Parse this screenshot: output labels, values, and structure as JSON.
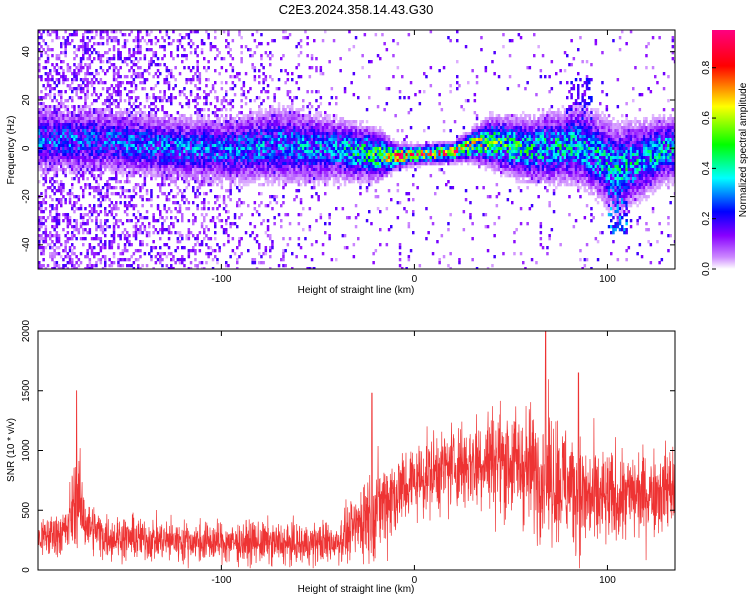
{
  "title": "C2E3.2024.358.14.43.G30",
  "chart_data": [
    {
      "type": "heatmap",
      "xlabel": "Height of straight line (km)",
      "ylabel": "Frequency (Hz)",
      "xlim": [
        -195,
        135
      ],
      "ylim": [
        -50,
        49
      ],
      "x_ticks": [
        -100,
        0,
        100
      ],
      "y_ticks": [
        -40,
        -20,
        0,
        20,
        40
      ],
      "colorbar": {
        "label": "Normalized spectral amplitude",
        "range": [
          0.0,
          0.95
        ],
        "ticks": [
          0.0,
          0.2,
          0.4,
          0.6,
          0.8
        ],
        "colors": [
          "#ffffff",
          "#8800ff",
          "#0000ff",
          "#00ffff",
          "#00ff00",
          "#ffff00",
          "#ff0000",
          "#ff0080"
        ]
      },
      "ridge": [
        {
          "x": -160,
          "f": 4,
          "width": 10,
          "amp": 0.3
        },
        {
          "x": -130,
          "f": 1,
          "width": 10,
          "amp": 0.32
        },
        {
          "x": -100,
          "f": 0,
          "width": 10,
          "amp": 0.32
        },
        {
          "x": -70,
          "f": 2,
          "width": 12,
          "amp": 0.33
        },
        {
          "x": -40,
          "f": 0,
          "width": 10,
          "amp": 0.35
        },
        {
          "x": -20,
          "f": -2,
          "width": 8,
          "amp": 0.55
        },
        {
          "x": -10,
          "f": -3,
          "width": 4,
          "amp": 0.8
        },
        {
          "x": 0,
          "f": -2,
          "width": 3,
          "amp": 0.85
        },
        {
          "x": 20,
          "f": -1,
          "width": 3,
          "amp": 0.85
        },
        {
          "x": 30,
          "f": 2,
          "width": 5,
          "amp": 0.7
        },
        {
          "x": 40,
          "f": 3,
          "width": 8,
          "amp": 0.55
        },
        {
          "x": 60,
          "f": 0,
          "width": 10,
          "amp": 0.45
        },
        {
          "x": 85,
          "f": 2,
          "width": 12,
          "amp": 0.4
        },
        {
          "x": 105,
          "f": -8,
          "width": 14,
          "amp": 0.4
        },
        {
          "x": 130,
          "f": 0,
          "width": 10,
          "amp": 0.4
        }
      ]
    },
    {
      "type": "line",
      "xlabel": "Height of straight line (km)",
      "ylabel": "SNR (10 * v/v)",
      "xlim": [
        -195,
        135
      ],
      "ylim": [
        0,
        2000
      ],
      "x_ticks": [
        -100,
        0,
        100
      ],
      "y_ticks": [
        0,
        500,
        1000,
        1500,
        2000
      ],
      "color": "#ee3333",
      "envelope": {
        "x": [
          -195,
          -180,
          -175,
          -170,
          -160,
          -140,
          -120,
          -100,
          -80,
          -60,
          -40,
          -30,
          -25,
          -20,
          -10,
          0,
          10,
          20,
          30,
          40,
          50,
          60,
          70,
          80,
          90,
          100,
          110,
          120,
          135
        ],
        "mean": [
          260,
          330,
          650,
          380,
          280,
          260,
          240,
          230,
          230,
          210,
          240,
          360,
          480,
          520,
          640,
          750,
          820,
          870,
          900,
          940,
          900,
          850,
          800,
          700,
          600,
          580,
          620,
          640,
          700
        ],
        "spread": [
          200,
          250,
          500,
          250,
          220,
          210,
          200,
          200,
          210,
          200,
          220,
          300,
          500,
          450,
          450,
          350,
          400,
          420,
          480,
          520,
          550,
          600,
          650,
          600,
          550,
          480,
          450,
          420,
          420
        ]
      },
      "peaks": [
        {
          "x": -175,
          "y": 1500
        },
        {
          "x": 68,
          "y": 2000
        },
        {
          "x": 85,
          "y": 1650
        },
        {
          "x": -22,
          "y": 1480
        }
      ]
    }
  ]
}
